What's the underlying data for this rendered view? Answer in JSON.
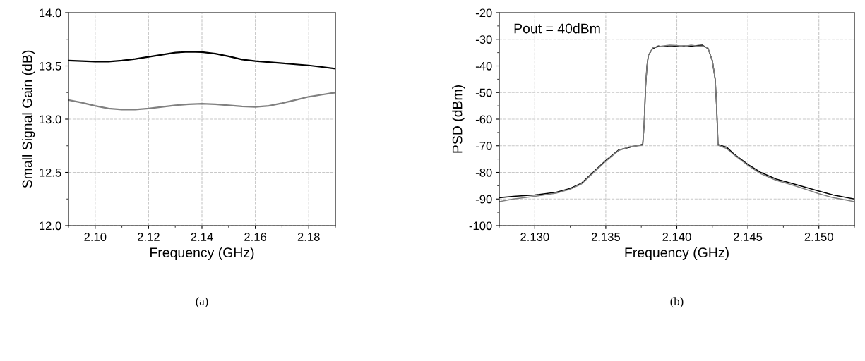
{
  "chart_data": [
    {
      "type": "line",
      "xlabel": "Frequency (GHz)",
      "ylabel": "Small Signal Gain (dB)",
      "annotations": [
        "(a)"
      ],
      "xlim": [
        2.09,
        2.19
      ],
      "xticks": [
        {
          "value": 2.1,
          "label": "2.10"
        },
        {
          "value": 2.12,
          "label": "2.12"
        },
        {
          "value": 2.14,
          "label": "2.14"
        },
        {
          "value": 2.16,
          "label": "2.16"
        },
        {
          "value": 2.18,
          "label": "2.18"
        }
      ],
      "ylim": [
        12.0,
        14.0
      ],
      "yticks": [
        {
          "value": 12.0,
          "label": "12.0"
        },
        {
          "value": 12.5,
          "label": "12.5"
        },
        {
          "value": 13.0,
          "label": "13.0"
        },
        {
          "value": 13.5,
          "label": "13.5"
        },
        {
          "value": 14.0,
          "label": "14.0"
        }
      ],
      "grid": true,
      "legend": false,
      "marker": "none",
      "line_style": "solid",
      "x": [
        2.09,
        2.095,
        2.1,
        2.105,
        2.11,
        2.115,
        2.12,
        2.125,
        2.13,
        2.135,
        2.14,
        2.145,
        2.15,
        2.155,
        2.16,
        2.165,
        2.17,
        2.175,
        2.18,
        2.185,
        2.19
      ],
      "series": [
        {
          "color": "#000000",
          "values": [
            13.55,
            13.545,
            13.54,
            13.54,
            13.55,
            13.565,
            13.585,
            13.605,
            13.625,
            13.633,
            13.63,
            13.615,
            13.59,
            13.56,
            13.545,
            13.535,
            13.525,
            13.515,
            13.505,
            13.49,
            13.475
          ]
        },
        {
          "color": "#808080",
          "values": [
            13.18,
            13.155,
            13.125,
            13.1,
            13.09,
            13.09,
            13.1,
            13.115,
            13.13,
            13.14,
            13.145,
            13.14,
            13.13,
            13.12,
            13.115,
            13.125,
            13.15,
            13.18,
            13.21,
            13.23,
            13.25
          ]
        }
      ]
    },
    {
      "type": "line",
      "xlabel": "Frequency (GHz)",
      "ylabel": "PSD (dBm)",
      "annotations": [
        "Pout = 40dBm",
        "(b)"
      ],
      "xlim": [
        2.1275,
        2.1525
      ],
      "xticks": [
        {
          "value": 2.13,
          "label": "2.130"
        },
        {
          "value": 2.135,
          "label": "2.135"
        },
        {
          "value": 2.14,
          "label": "2.140"
        },
        {
          "value": 2.145,
          "label": "2.145"
        },
        {
          "value": 2.15,
          "label": "2.150"
        }
      ],
      "ylim": [
        -100,
        -20
      ],
      "yticks": [
        -100,
        -90,
        -80,
        -70,
        -60,
        -50,
        -40,
        -30,
        -20
      ],
      "grid": true,
      "legend": false,
      "marker": "none",
      "line_style": "solid",
      "series": [
        {
          "color": "#000000",
          "x": [
            2.1275,
            2.1285,
            2.13,
            2.1315,
            2.1325,
            2.1333,
            2.1341,
            2.135,
            2.1359,
            2.1367,
            2.1376,
            2.1377,
            2.1378,
            2.1379,
            2.138,
            2.1383,
            2.1387,
            2.139,
            2.1395,
            2.14,
            2.1405,
            2.141,
            2.1415,
            2.1418,
            2.1422,
            2.1425,
            2.1427,
            2.1428,
            2.1429,
            2.1435,
            2.144,
            2.145,
            2.1459,
            2.147,
            2.148,
            2.149,
            2.15,
            2.151,
            2.1525
          ],
          "values": [
            -89.5,
            -89,
            -88.5,
            -87.5,
            -86,
            -84,
            -80,
            -75.5,
            -71.6,
            -70.5,
            -69.5,
            -62,
            -48,
            -40,
            -36,
            -33.5,
            -32.5,
            -32.8,
            -32.4,
            -32.6,
            -32.5,
            -32.6,
            -32.3,
            -32.2,
            -33.5,
            -38,
            -45,
            -55,
            -69.5,
            -70.5,
            -73,
            -77,
            -80,
            -82.5,
            -84,
            -85.5,
            -87,
            -88.5,
            -90
          ]
        },
        {
          "color": "#808080",
          "x": [
            2.1275,
            2.1285,
            2.13,
            2.1315,
            2.1325,
            2.1333,
            2.1341,
            2.135,
            2.1359,
            2.1367,
            2.1376,
            2.1377,
            2.1378,
            2.1379,
            2.138,
            2.1383,
            2.1387,
            2.139,
            2.1395,
            2.14,
            2.1405,
            2.141,
            2.1415,
            2.1418,
            2.1422,
            2.1425,
            2.1427,
            2.1428,
            2.1429,
            2.1435,
            2.144,
            2.145,
            2.1459,
            2.147,
            2.148,
            2.149,
            2.15,
            2.151,
            2.1525
          ],
          "values": [
            -91,
            -90,
            -89,
            -87.8,
            -86.3,
            -84.3,
            -80.3,
            -75.8,
            -71.8,
            -70.3,
            -69.8,
            -62,
            -48,
            -40,
            -36,
            -33.2,
            -32.8,
            -32.5,
            -32.2,
            -32.3,
            -32.8,
            -32.2,
            -32.6,
            -32.5,
            -33.3,
            -38,
            -45,
            -55,
            -69.8,
            -71,
            -73.3,
            -77.3,
            -80.5,
            -83,
            -84.5,
            -86.2,
            -88,
            -89.5,
            -91
          ]
        }
      ]
    }
  ]
}
